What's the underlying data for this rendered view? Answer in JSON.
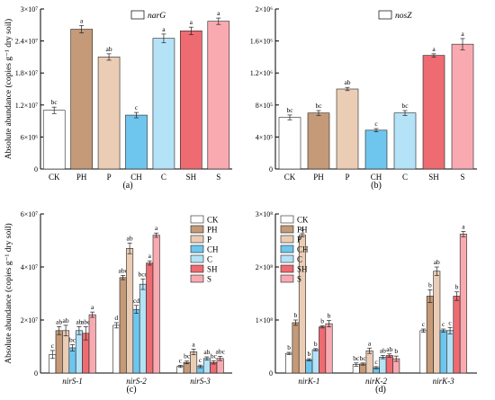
{
  "palette": {
    "CK": "#ffffff",
    "PH": "#c49a79",
    "P": "#ebcdb6",
    "CH": "#6ec6ee",
    "C": "#b4e2f7",
    "SH": "#ee6b72",
    "S": "#f9aab1"
  },
  "chart_data": [
    {
      "panel": "(a)",
      "type": "bar",
      "ylabel": "Absolute abundance (copies g⁻¹ dry soil)",
      "legend": [
        "narG"
      ],
      "legend_position": "top-left",
      "ylim": [
        0,
        30000000
      ],
      "yticks": [
        0,
        6000000,
        12000000,
        18000000,
        24000000,
        30000000
      ],
      "ytick_labels": [
        "0",
        "6×10⁶",
        "1.2×10⁷",
        "1.8×10⁷",
        "2.4×10⁷",
        "3×10⁷"
      ],
      "categories": [
        "CK",
        "PH",
        "P",
        "CH",
        "C",
        "SH",
        "S"
      ],
      "values": [
        11000000,
        26200000,
        21000000,
        10100000,
        24500000,
        25900000,
        27700000
      ],
      "errors": [
        600000,
        700000,
        600000,
        500000,
        800000,
        700000,
        600000
      ],
      "letters": [
        "bc",
        "a",
        "ab",
        "c",
        "a",
        "a",
        "a"
      ],
      "grid": false
    },
    {
      "panel": "(b)",
      "type": "bar",
      "legend": [
        "nosZ"
      ],
      "legend_position": "top-center",
      "ylim": [
        0,
        2000000
      ],
      "yticks": [
        0,
        400000,
        800000,
        1200000,
        1600000,
        2000000
      ],
      "ytick_labels": [
        "0",
        "4×10⁵",
        "8×10⁵",
        "1.2×10⁶",
        "1.6×10⁶",
        "2×10⁶"
      ],
      "categories": [
        "CK",
        "PH",
        "P",
        "CH",
        "C",
        "SH",
        "S"
      ],
      "values": [
        645000,
        700000,
        1000000,
        485000,
        700000,
        1420000,
        1560000
      ],
      "errors": [
        30000,
        30000,
        20000,
        20000,
        30000,
        20000,
        70000
      ],
      "letters": [
        "bc",
        "bc",
        "ab",
        "c",
        "bc",
        "a",
        "a"
      ],
      "grid": false
    },
    {
      "panel": "(c)",
      "type": "bar",
      "ylabel": "Absolute abundance (copies g⁻¹ dry soil)",
      "legend_position": "top-right",
      "ylim": [
        0,
        60000000
      ],
      "yticks": [
        0,
        20000000,
        40000000,
        60000000
      ],
      "ytick_labels": [
        "0",
        "2×10⁷",
        "4×10⁷",
        "6×10⁷"
      ],
      "categories": [
        "nirS-1",
        "nirS-2",
        "nirS-3"
      ],
      "series": [
        {
          "name": "CK",
          "values": [
            7000000,
            18000000,
            2500000
          ],
          "errors": [
            1500000,
            1000000,
            400000
          ],
          "letters": [
            "c",
            "d",
            "c"
          ]
        },
        {
          "name": "PH",
          "values": [
            16000000,
            36000000,
            4000000
          ],
          "errors": [
            1500000,
            800000,
            500000
          ],
          "letters": [
            "ab",
            "abc",
            "bc"
          ]
        },
        {
          "name": "P",
          "values": [
            16000000,
            47000000,
            8000000
          ],
          "errors": [
            2000000,
            2000000,
            1000000
          ],
          "letters": [
            "ab",
            "ab",
            "a"
          ]
        },
        {
          "name": "CH",
          "values": [
            9500000,
            24000000,
            2500000
          ],
          "errors": [
            1200000,
            1500000,
            500000
          ],
          "letters": [
            "bc",
            "cd",
            "c"
          ]
        },
        {
          "name": "C",
          "values": [
            16000000,
            33500000,
            5500000
          ],
          "errors": [
            1500000,
            2000000,
            600000
          ],
          "letters": [
            "ab",
            "bcd",
            "ab"
          ]
        },
        {
          "name": "SH",
          "values": [
            15000000,
            41500000,
            4000000
          ],
          "errors": [
            2500000,
            800000,
            600000
          ],
          "letters": [
            "abc",
            "a",
            "bc"
          ]
        },
        {
          "name": "S",
          "values": [
            22000000,
            52000000,
            5500000
          ],
          "errors": [
            1000000,
            800000,
            800000
          ],
          "letters": [
            "a",
            "a",
            "abc"
          ]
        }
      ],
      "grid": false
    },
    {
      "panel": "(d)",
      "type": "bar",
      "legend_position": "top-left",
      "ylim": [
        0,
        300000000
      ],
      "yticks": [
        0,
        100000000,
        200000000,
        300000000
      ],
      "ytick_labels": [
        "0",
        "1×10⁸",
        "2×10⁸",
        "3×10⁸"
      ],
      "categories": [
        "nirK-1",
        "nirK-2",
        "nirK-3"
      ],
      "series": [
        {
          "name": "CK",
          "values": [
            37000000,
            16000000,
            80000000
          ],
          "errors": [
            2000000,
            3000000,
            3000000
          ],
          "letters": [
            "b",
            "bc",
            "c"
          ]
        },
        {
          "name": "PH",
          "values": [
            95000000,
            17000000,
            145000000
          ],
          "errors": [
            5000000,
            2000000,
            12000000
          ],
          "letters": [
            "b",
            "bc",
            "b"
          ]
        },
        {
          "name": "P",
          "values": [
            260000000,
            42000000,
            192000000
          ],
          "errors": [
            3000000,
            5000000,
            8000000
          ],
          "letters": [
            "a",
            "a",
            "ab"
          ]
        },
        {
          "name": "CH",
          "values": [
            25000000,
            10000000,
            80000000
          ],
          "errors": [
            2000000,
            2000000,
            3000000
          ],
          "letters": [
            "b",
            "c",
            "c"
          ]
        },
        {
          "name": "C",
          "values": [
            44000000,
            30000000,
            80000000
          ],
          "errors": [
            2000000,
            3000000,
            6000000
          ],
          "letters": [
            "b",
            "ab",
            "c"
          ]
        },
        {
          "name": "SH",
          "values": [
            87000000,
            33000000,
            145000000
          ],
          "errors": [
            2000000,
            3000000,
            8000000
          ],
          "letters": [
            "b",
            "ab",
            "b"
          ]
        },
        {
          "name": "S",
          "values": [
            93000000,
            27000000,
            262000000
          ],
          "errors": [
            6000000,
            5000000,
            5000000
          ],
          "letters": [
            "b",
            "b",
            "a"
          ]
        }
      ],
      "grid": false
    }
  ]
}
